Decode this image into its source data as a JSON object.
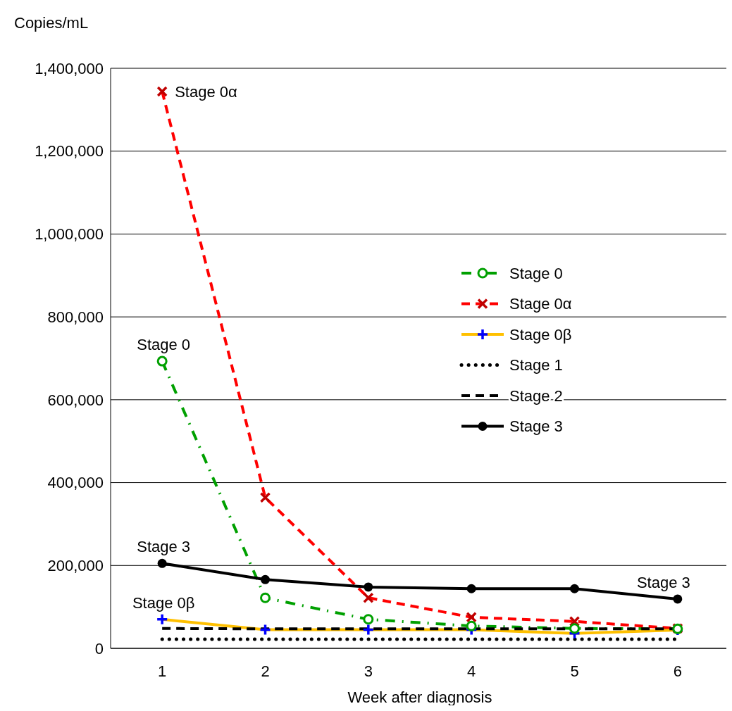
{
  "chart_data": {
    "type": "line",
    "ylabel": "Copies/mL",
    "xlabel": "Week after diagnosis",
    "categories": [
      "1",
      "2",
      "3",
      "4",
      "5",
      "6"
    ],
    "ylim": [
      0,
      1400000
    ],
    "yticks": [
      {
        "value": 0,
        "label": "0"
      },
      {
        "value": 200000,
        "label": "200,000"
      },
      {
        "value": 400000,
        "label": "400,000"
      },
      {
        "value": 600000,
        "label": "600,000"
      },
      {
        "value": 800000,
        "label": "800,000"
      },
      {
        "value": 1000000,
        "label": "1,000,000"
      },
      {
        "value": 1200000,
        "label": "1,200,000"
      },
      {
        "value": 1400000,
        "label": "1,400,000"
      }
    ],
    "grid": "y",
    "legend": "right",
    "series": [
      {
        "name": "Stage 0",
        "color": "#00a000",
        "line_style": "dashdot",
        "marker": "open_circle",
        "values": [
          693000,
          122000,
          70000,
          54000,
          48000,
          47000
        ]
      },
      {
        "name": "Stage 0α",
        "color": "#ff0000",
        "line_style": "dashed",
        "marker": "cross",
        "values": [
          1344000,
          364000,
          122000,
          75000,
          65000,
          48000
        ]
      },
      {
        "name": "Stage 0β",
        "color": "#ffc000",
        "line_style": "solid",
        "marker": "plus",
        "values": [
          70000,
          45000,
          45000,
          45000,
          36000,
          44000
        ]
      },
      {
        "name": "Stage 1",
        "color": "#000000",
        "line_style": "dotted",
        "marker": "none",
        "values": [
          22000,
          22000,
          22000,
          22000,
          22000,
          22000
        ]
      },
      {
        "name": "Stage 2",
        "color": "#000000",
        "line_style": "dashed",
        "marker": "none",
        "values": [
          48000,
          47000,
          47000,
          47000,
          47000,
          47000
        ]
      },
      {
        "name": "Stage 3",
        "color": "#000000",
        "line_style": "solid",
        "marker": "circle",
        "values": [
          205000,
          166000,
          148000,
          144000,
          144000,
          119000
        ]
      }
    ],
    "annotations": [
      {
        "text": "Stage 0α",
        "x": "1",
        "y": 1344000
      },
      {
        "text": "Stage 0",
        "x": "1",
        "y": 693000
      },
      {
        "text": "Stage 3",
        "x": "1",
        "y": 205000
      },
      {
        "text": "Stage 0β",
        "x": "1",
        "y": 70000
      },
      {
        "text": "Stage 3",
        "x": "6",
        "y": 119000
      }
    ]
  }
}
